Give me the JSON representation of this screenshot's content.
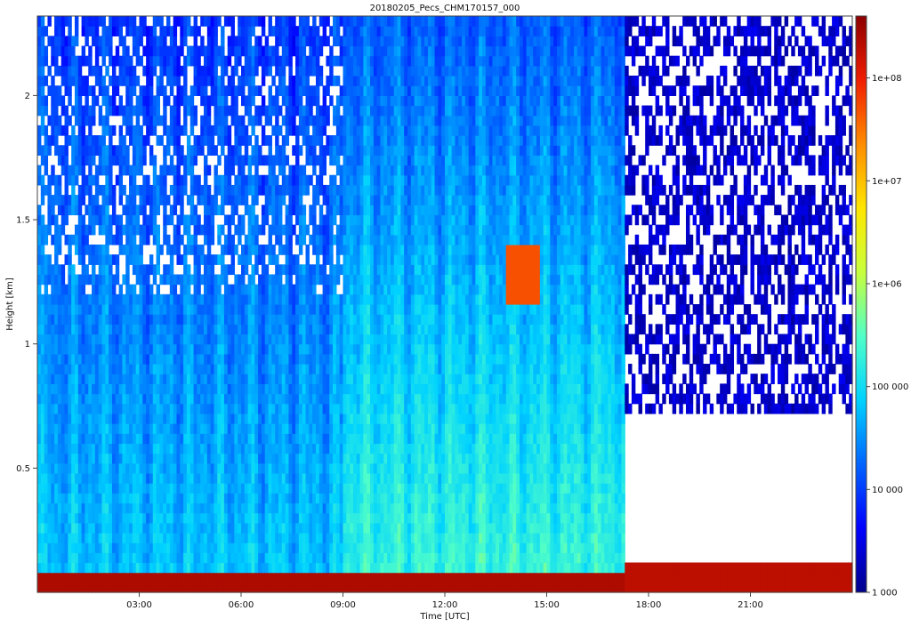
{
  "chart_data": {
    "type": "heatmap",
    "title": "20180205_Pecs_CHM170157_000",
    "xlabel": "Time [UTC]",
    "ylabel": "Height [km]",
    "x_unit": "hours UTC",
    "xlim": [
      0,
      24
    ],
    "ylim": [
      0,
      2.32
    ],
    "x_ticks": [
      {
        "value": 3,
        "label": "03:00"
      },
      {
        "value": 6,
        "label": "06:00"
      },
      {
        "value": 9,
        "label": "09:00"
      },
      {
        "value": 12,
        "label": "12:00"
      },
      {
        "value": 15,
        "label": "15:00"
      },
      {
        "value": 18,
        "label": "18:00"
      },
      {
        "value": 21,
        "label": "21:00"
      }
    ],
    "y_ticks": [
      {
        "value": 0.5,
        "label": "0.5"
      },
      {
        "value": 1,
        "label": "1"
      },
      {
        "value": 1.5,
        "label": "1.5"
      },
      {
        "value": 2,
        "label": "2"
      }
    ],
    "colorbar": {
      "scale": "log",
      "range": [
        1000,
        400000000
      ],
      "ticks": [
        {
          "value": 1000,
          "label": "1 000"
        },
        {
          "value": 10000,
          "label": "10 000"
        },
        {
          "value": 100000,
          "label": "100 000"
        },
        {
          "value": 1000000,
          "label": "1e+06"
        },
        {
          "value": 10000000,
          "label": "1e+07"
        },
        {
          "value": 100000000,
          "label": "1e+08"
        }
      ],
      "colors": [
        "#00008a",
        "#0000ff",
        "#0064ff",
        "#00d2ff",
        "#50ffc8",
        "#c8ff3c",
        "#ffe600",
        "#ff8c00",
        "#f01e00",
        "#8c0000"
      ]
    },
    "features": [
      {
        "name": "surface-layer",
        "x_range": [
          0,
          17.3
        ],
        "height_km": [
          0.0,
          0.06
        ],
        "intensity": 250000000
      },
      {
        "name": "surface-layer",
        "x_range": [
          17.3,
          24
        ],
        "height_km": [
          0.0,
          0.1
        ],
        "intensity": 200000000
      },
      {
        "name": "elevated-layer",
        "x_range": [
          13.8,
          14.8
        ],
        "height_km": [
          1.15,
          1.4
        ],
        "intensity": 50000000
      },
      {
        "name": "no-signal-gap",
        "x_range": [
          17.3,
          24
        ],
        "height_km": [
          0.1,
          0.7
        ],
        "intensity": 0
      }
    ]
  }
}
